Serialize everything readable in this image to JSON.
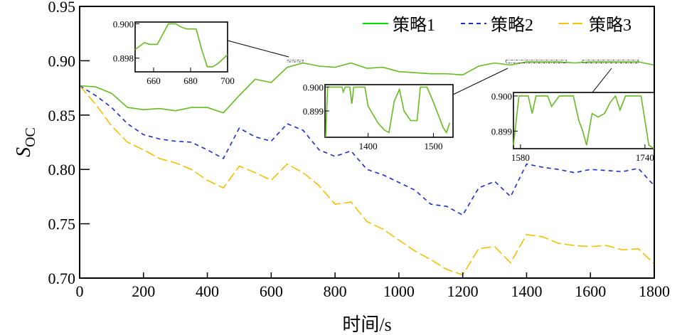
{
  "chart_data": {
    "type": "line",
    "xlabel": "时间/s",
    "ylabel": {
      "main": "S",
      "sub": "OC"
    },
    "xlim": [
      0,
      1800
    ],
    "ylim": [
      0.7,
      0.95
    ],
    "xticks": [
      0,
      200,
      400,
      600,
      800,
      1000,
      1200,
      1400,
      1600,
      1800
    ],
    "xtick_labels": [
      "0",
      "200",
      "400",
      "600",
      "800",
      "1000",
      "1200",
      "1400",
      "1600",
      "1800"
    ],
    "yticks": [
      0.7,
      0.75,
      0.8,
      0.85,
      0.9,
      0.95
    ],
    "ytick_labels": [
      "0.70",
      "0.75",
      "0.80",
      "0.85",
      "0.90",
      "0.95"
    ],
    "grid": false,
    "legend": "top-right",
    "x": [
      0,
      50,
      100,
      150,
      200,
      250,
      300,
      350,
      400,
      450,
      500,
      550,
      600,
      650,
      700,
      750,
      800,
      850,
      900,
      950,
      1000,
      1050,
      1100,
      1150,
      1200,
      1250,
      1300,
      1350,
      1400,
      1450,
      1500,
      1550,
      1600,
      1650,
      1700,
      1750,
      1800
    ],
    "series": [
      {
        "name": "策略1",
        "color": "#66bb22",
        "legend_color": "#00e000",
        "dash": "solid",
        "values": [
          0.877,
          0.876,
          0.87,
          0.857,
          0.855,
          0.856,
          0.854,
          0.857,
          0.857,
          0.852,
          0.868,
          0.883,
          0.88,
          0.894,
          0.898,
          0.895,
          0.894,
          0.898,
          0.893,
          0.894,
          0.89,
          0.889,
          0.888,
          0.888,
          0.887,
          0.895,
          0.898,
          0.896,
          0.899,
          0.899,
          0.899,
          0.898,
          0.899,
          0.899,
          0.899,
          0.899,
          0.896
        ]
      },
      {
        "name": "策略2",
        "color": "#1a2fc8",
        "dash": "dashed",
        "values": [
          0.877,
          0.868,
          0.857,
          0.842,
          0.832,
          0.828,
          0.826,
          0.825,
          0.818,
          0.81,
          0.838,
          0.83,
          0.826,
          0.842,
          0.836,
          0.818,
          0.812,
          0.817,
          0.8,
          0.795,
          0.788,
          0.781,
          0.768,
          0.766,
          0.758,
          0.783,
          0.789,
          0.775,
          0.805,
          0.802,
          0.8,
          0.797,
          0.8,
          0.799,
          0.798,
          0.801,
          0.785
        ]
      },
      {
        "name": "策略3",
        "color": "#f5c000",
        "dash": "long-dash",
        "values": [
          0.877,
          0.86,
          0.84,
          0.825,
          0.818,
          0.81,
          0.806,
          0.8,
          0.79,
          0.783,
          0.803,
          0.797,
          0.79,
          0.805,
          0.797,
          0.785,
          0.768,
          0.77,
          0.752,
          0.745,
          0.735,
          0.725,
          0.717,
          0.708,
          0.703,
          0.727,
          0.729,
          0.714,
          0.74,
          0.738,
          0.732,
          0.73,
          0.729,
          0.73,
          0.726,
          0.727,
          0.713
        ]
      }
    ],
    "insets": [
      {
        "xlim": [
          650,
          700
        ],
        "ylim": [
          0.8972,
          0.9001
        ],
        "source_x": [
          650,
          700
        ],
        "source_y": [
          0.8975,
          0.9005
        ],
        "xtick_labels": [
          "660",
          "680",
          "700"
        ],
        "xticks": [
          660,
          680,
          700
        ],
        "ytick_labels": [
          "0.900",
          "0.898"
        ],
        "yticks": [
          0.9,
          0.898
        ],
        "x": [
          650,
          655,
          658,
          662,
          665,
          668,
          672,
          675,
          678,
          683,
          686,
          689,
          692,
          695,
          700
        ],
        "values": [
          0.8985,
          0.8989,
          0.8988,
          0.8988,
          0.8994,
          0.9,
          0.9,
          0.8998,
          0.8997,
          0.8997,
          0.8985,
          0.8975,
          0.8975,
          0.8977,
          0.8982
        ]
      },
      {
        "xlim": [
          1334,
          1530
        ],
        "ylim": [
          0.8979,
          0.9001
        ],
        "source_x": [
          1335,
          1525
        ],
        "source_y": [
          0.8955,
          0.9005
        ],
        "xtick_labels": [
          "1400",
          "1500"
        ],
        "xticks": [
          1400,
          1500
        ],
        "ytick_labels": [
          "0.900",
          "0.899"
        ],
        "yticks": [
          0.9,
          0.899
        ],
        "x": [
          1335,
          1338,
          1360,
          1362,
          1365,
          1372,
          1375,
          1378,
          1395,
          1400,
          1415,
          1425,
          1432,
          1440,
          1448,
          1455,
          1465,
          1475,
          1480,
          1490,
          1498,
          1508,
          1515,
          1520,
          1525
        ],
        "values": [
          0.8979,
          0.9,
          0.9,
          0.8998,
          0.9,
          0.9,
          0.8993,
          0.9,
          0.9,
          0.8992,
          0.8985,
          0.8982,
          0.8981,
          0.8994,
          0.8999,
          0.899,
          0.8986,
          0.8986,
          0.9,
          0.9,
          0.8995,
          0.8988,
          0.8983,
          0.8981,
          0.8985
        ]
      },
      {
        "xlim": [
          1571,
          1752
        ],
        "ylim": [
          0.8985,
          0.9001
        ],
        "source_x": [
          1575,
          1750
        ],
        "source_y": [
          0.8955,
          0.9005
        ],
        "xtick_labels": [
          "1580",
          "1740"
        ],
        "xticks": [
          1580,
          1740
        ],
        "ytick_labels": [
          "0.900",
          "0.899"
        ],
        "yticks": [
          0.9,
          0.899
        ],
        "x": [
          1571,
          1578,
          1590,
          1595,
          1600,
          1615,
          1620,
          1630,
          1648,
          1655,
          1660,
          1665,
          1672,
          1680,
          1688,
          1695,
          1702,
          1708,
          1715,
          1735,
          1740,
          1745,
          1752
        ],
        "values": [
          0.8986,
          0.9,
          0.9,
          0.8995,
          0.9,
          0.9,
          0.8997,
          0.9,
          0.9,
          0.8993,
          0.899,
          0.8986,
          0.8995,
          0.8994,
          0.8995,
          0.8998,
          0.9,
          0.8996,
          0.9,
          0.9,
          0.8993,
          0.8986,
          0.8985
        ]
      }
    ]
  }
}
